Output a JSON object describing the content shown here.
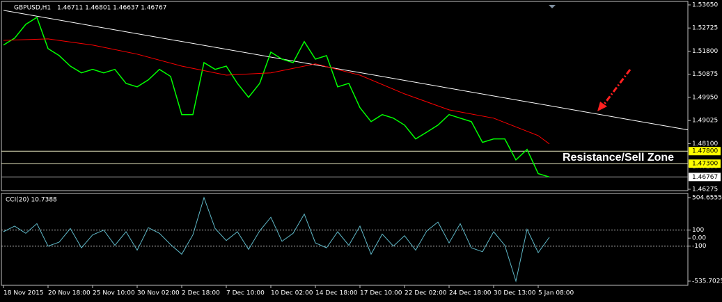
{
  "chart_data": [
    {
      "type": "line",
      "symbol": "GBPUSD,H1",
      "info": "1.46711 1.46801 1.46637 1.46767",
      "annotation": "Resistance/Sell Zone",
      "xlim": [
        0,
        983
      ],
      "xticks": [
        {
          "value": 0,
          "label": "18 Nov 2015"
        },
        {
          "value": 64,
          "label": "20 Nov 18:00"
        },
        {
          "value": 128,
          "label": "25 Nov 10:00"
        },
        {
          "value": 192,
          "label": "30 Nov 02:00"
        },
        {
          "value": 256,
          "label": "2 Dec 18:00"
        },
        {
          "value": 320,
          "label": "7 Dec 10:00"
        },
        {
          "value": 384,
          "label": "10 Dec 02:00"
        },
        {
          "value": 448,
          "label": "14 Dec 18:00"
        },
        {
          "value": 512,
          "label": "17 Dec 10:00"
        },
        {
          "value": 576,
          "label": "22 Dec 02:00"
        },
        {
          "value": 640,
          "label": "24 Dec 18:00"
        },
        {
          "value": 704,
          "label": "30 Dec 13:00"
        },
        {
          "value": 768,
          "label": "5 Jan 08:00"
        }
      ],
      "ylim": [
        1.46219,
        1.53789
      ],
      "yticks": [
        {
          "value": 1.5365,
          "label": "1.53650"
        },
        {
          "value": 1.52725,
          "label": "1.52725"
        },
        {
          "value": 1.518,
          "label": "1.51800"
        },
        {
          "value": 1.50875,
          "label": "1.50875"
        },
        {
          "value": 1.4995,
          "label": "1.49950"
        },
        {
          "value": 1.49025,
          "label": "1.49025"
        },
        {
          "value": 1.481,
          "label": "1.48100"
        },
        {
          "value": 1.472,
          "label": "1.47200"
        },
        {
          "value": 1.46275,
          "label": "1.46275"
        }
      ],
      "levels": [
        {
          "value": 1.478,
          "label": "1.47800",
          "color": "#ffff00"
        },
        {
          "value": 1.473,
          "label": "1.47300",
          "color": "#ffff00"
        },
        {
          "value": 1.46767,
          "label": "1.46767",
          "color": "#ffffff"
        }
      ],
      "trendline": {
        "x": [
          0,
          983
        ],
        "y": [
          1.5343,
          1.4865
        ],
        "color": "#ffffff"
      },
      "series": [
        {
          "name": "Price",
          "color": "#00ff00",
          "x": [
            0,
            16,
            32,
            48,
            64,
            80,
            96,
            112,
            128,
            144,
            160,
            176,
            192,
            208,
            224,
            240,
            256,
            272,
            288,
            304,
            320,
            336,
            352,
            368,
            384,
            400,
            416,
            432,
            448,
            464,
            480,
            496,
            512,
            528,
            544,
            560,
            576,
            592,
            608,
            624,
            640,
            656,
            672,
            688,
            704,
            720,
            736,
            752,
            768,
            784
          ],
          "values": [
            1.5204,
            1.5232,
            1.5287,
            1.5315,
            1.519,
            1.5162,
            1.512,
            1.5093,
            1.5107,
            1.5093,
            1.5107,
            1.5051,
            1.5037,
            1.5065,
            1.5107,
            1.5079,
            1.4926,
            1.4926,
            1.5134,
            1.5107,
            1.512,
            1.5051,
            1.4995,
            1.5051,
            1.5176,
            1.5148,
            1.5134,
            1.5218,
            1.5148,
            1.5162,
            1.5037,
            1.5051,
            1.4954,
            1.4898,
            1.4926,
            1.4912,
            1.4884,
            1.4829,
            1.4856,
            1.4884,
            1.4926,
            1.4912,
            1.4898,
            1.4815,
            1.4829,
            1.4829,
            1.4745,
            1.4787,
            1.469,
            1.46767
          ]
        },
        {
          "name": "MA",
          "color": "#ff0000",
          "x": [
            0,
            64,
            128,
            192,
            256,
            320,
            384,
            448,
            512,
            576,
            640,
            704,
            768,
            784
          ],
          "values": [
            1.5223,
            1.5229,
            1.5204,
            1.5168,
            1.512,
            1.5084,
            1.5093,
            1.5129,
            1.5084,
            1.5009,
            1.4945,
            1.4912,
            1.4842,
            1.4809
          ]
        }
      ]
    },
    {
      "type": "line",
      "title": "CCI(20) 10.7388",
      "xlim": [
        0,
        983
      ],
      "ylim": [
        -535.7025,
        504.6555
      ],
      "yticks": [
        {
          "value": 504.6555,
          "label": "504.6555"
        },
        100,
        {
          "value": 0,
          "label": "0.00"
        },
        -100,
        {
          "value": -535.7025,
          "label": "-535.7025"
        }
      ],
      "levels": [
        100,
        -100
      ],
      "series": [
        {
          "name": "CCI",
          "color": "#5fb8c8",
          "x": [
            0,
            16,
            32,
            48,
            64,
            80,
            96,
            112,
            128,
            144,
            160,
            176,
            192,
            208,
            224,
            240,
            256,
            272,
            288,
            304,
            320,
            336,
            352,
            368,
            384,
            400,
            416,
            432,
            448,
            464,
            480,
            496,
            512,
            528,
            544,
            560,
            576,
            592,
            608,
            624,
            640,
            656,
            672,
            688,
            704,
            720,
            736,
            752,
            768,
            784
          ],
          "values": [
            80,
            150,
            60,
            180,
            -100,
            -50,
            120,
            -120,
            40,
            100,
            -90,
            80,
            -150,
            130,
            60,
            -80,
            -200,
            40,
            504.6555,
            120,
            -30,
            80,
            -140,
            90,
            260,
            -40,
            60,
            300,
            -60,
            -120,
            80,
            -90,
            150,
            -200,
            50,
            -100,
            30,
            -150,
            90,
            200,
            -60,
            180,
            -120,
            -170,
            80,
            -90,
            -535.7025,
            110,
            -180,
            10.7388
          ]
        }
      ]
    }
  ]
}
